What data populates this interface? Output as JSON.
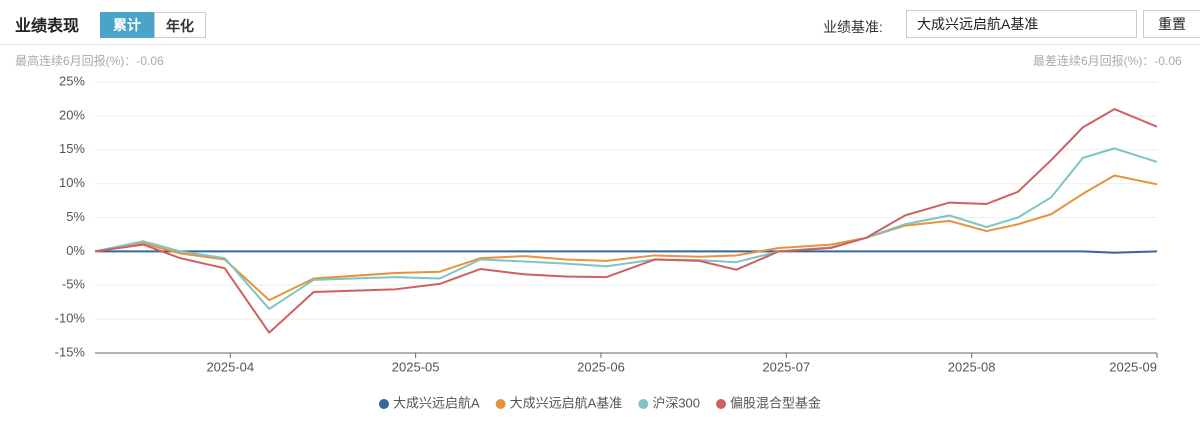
{
  "header": {
    "title": "业绩表现",
    "tabs": [
      "累计",
      "年化"
    ],
    "benchmark_label": "业绩基准:",
    "benchmark_value": "大成兴远启航A基准",
    "reset": "重置"
  },
  "stats": {
    "best_label": "最高连续6月回报(%)：",
    "best_value": -0.06,
    "worst_label": "最差连续6月回报(%)：",
    "worst_value": -0.06
  },
  "chart_data": {
    "type": "line",
    "x": [
      3.27,
      3.53,
      3.73,
      3.97,
      4.21,
      4.45,
      4.89,
      5.13,
      5.35,
      5.59,
      5.81,
      6.03,
      6.29,
      6.53,
      6.73,
      6.96,
      7.24,
      7.43,
      7.64,
      7.88,
      8.08,
      8.25,
      8.43,
      8.6,
      8.77,
      9.0
    ],
    "series": [
      {
        "name": "大成兴远启航A",
        "color": "#35689a",
        "values": [
          0,
          0,
          0,
          0,
          0,
          0,
          0,
          0,
          0,
          0,
          0,
          0,
          0,
          0,
          0,
          0,
          0,
          0,
          0,
          0,
          0,
          0,
          0,
          0,
          -0.2,
          0
        ]
      },
      {
        "name": "大成兴远启航A基准",
        "color": "#e8923a",
        "values": [
          0,
          1.2,
          -0.3,
          -1.2,
          -7.2,
          -4,
          -3.2,
          -3,
          -1,
          -0.7,
          -1.2,
          -1.4,
          -0.6,
          -0.8,
          -0.6,
          0.5,
          1,
          2,
          3.8,
          4.5,
          3,
          4,
          5.5,
          8.5,
          11.2,
          9.9
        ]
      },
      {
        "name": "沪深300",
        "color": "#7ec4c4",
        "values": [
          0,
          1.5,
          0,
          -1,
          -8.5,
          -4.2,
          -3.8,
          -4,
          -1.2,
          -1.5,
          -1.8,
          -2.2,
          -1.2,
          -1.3,
          -1.6,
          0,
          0.6,
          2,
          4,
          5.3,
          3.6,
          5,
          8,
          13.8,
          15.2,
          13.2
        ]
      },
      {
        "name": "偏股混合型基金",
        "color": "#d06060",
        "values": [
          0,
          1,
          -1,
          -2.5,
          -12,
          -6,
          -5.6,
          -4.8,
          -2.6,
          -3.4,
          -3.7,
          -3.8,
          -1.2,
          -1.4,
          -2.7,
          0,
          0.5,
          2,
          5.3,
          7.2,
          7,
          8.8,
          13.5,
          18.3,
          21,
          18.4
        ]
      }
    ],
    "xlim": [
      3.27,
      9.0
    ],
    "xticks": [
      {
        "value": 4,
        "label": "2025-04"
      },
      {
        "value": 5,
        "label": "2025-05"
      },
      {
        "value": 6,
        "label": "2025-06"
      },
      {
        "value": 7,
        "label": "2025-07"
      },
      {
        "value": 8,
        "label": "2025-08"
      },
      {
        "value": 9,
        "label": "2025-09"
      }
    ],
    "ylim": [
      -15,
      25
    ],
    "yticks": [
      {
        "value": -15,
        "label": "-15%"
      },
      {
        "value": -10,
        "label": "-10%"
      },
      {
        "value": -5,
        "label": "-5%"
      },
      {
        "value": 0,
        "label": "0%"
      },
      {
        "value": 5,
        "label": "5%"
      },
      {
        "value": 10,
        "label": "10%"
      },
      {
        "value": 15,
        "label": "15%"
      },
      {
        "value": 20,
        "label": "20%"
      },
      {
        "value": 25,
        "label": "25%"
      }
    ],
    "grid": true,
    "legend": "bottom"
  }
}
